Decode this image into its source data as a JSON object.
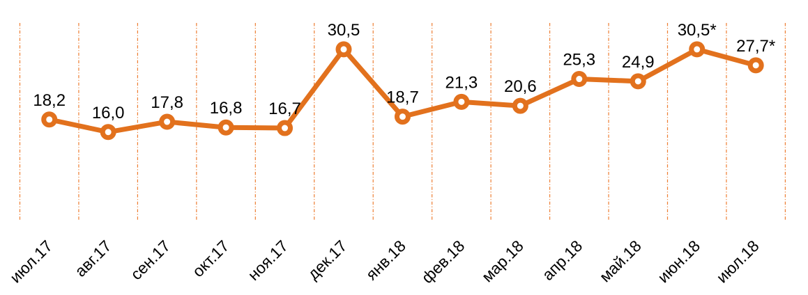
{
  "chart_data": {
    "type": "line",
    "categories": [
      "июл.17",
      "авг.17",
      "сен.17",
      "окт.17",
      "ноя.17",
      "дек.17",
      "янв.18",
      "фев.18",
      "мар.18",
      "апр.18",
      "май.18",
      "июн.18",
      "июл.18"
    ],
    "values": [
      18.2,
      16.0,
      17.8,
      16.8,
      16.7,
      30.5,
      18.7,
      21.3,
      20.6,
      25.3,
      24.9,
      30.5,
      27.7
    ],
    "data_labels": [
      "18,2",
      "16,0",
      "17,8",
      "16,8",
      "16,7",
      "30,5",
      "18,7",
      "21,3",
      "20,6",
      "25,3",
      "24,9",
      "30,5*",
      "27,7*"
    ],
    "title": "",
    "xlabel": "",
    "ylabel": "",
    "ylim": [
      0,
      35
    ],
    "grid": "vertical-dash-dot",
    "legend": "none",
    "marker": "circle-open",
    "colors": {
      "line": "#E2711D",
      "gridline": "#ED7D31",
      "marker_fill": "#FFFFFF",
      "text": "#000000",
      "background": "#FFFFFF"
    }
  }
}
